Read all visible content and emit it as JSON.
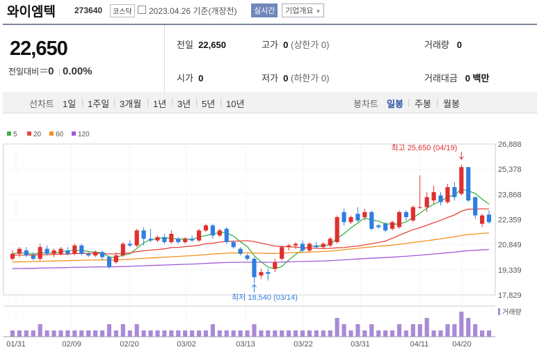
{
  "header": {
    "name": "와이엠텍",
    "code": "273640",
    "market": "코스닥",
    "date_text": "2023.04.26 기준(개장전)",
    "realtime": "실시간",
    "company_info": "기업개요"
  },
  "price_box": {
    "price": "22,650",
    "change_label": "전일대비",
    "change_value": "0",
    "change_pct": "0.00%"
  },
  "stats": {
    "prev_label": "전일",
    "prev_value": "22,650",
    "high_label": "고가",
    "high_value": "0",
    "high_limit": "(상한가 0)",
    "volume_label": "거래량",
    "volume_value": "0",
    "open_label": "시가",
    "open_value": "0",
    "low_label": "저가",
    "low_value": "0",
    "low_limit": "(하한가 0)",
    "amount_label": "거래대금",
    "amount_value": "0 백만"
  },
  "line_chart_tabs": {
    "label": "선차트",
    "items": [
      "1일",
      "1주일",
      "3개월",
      "1년",
      "3년",
      "5년",
      "10년"
    ]
  },
  "candle_tabs": {
    "label": "봉차트",
    "items": [
      "일봉",
      "주봉",
      "월봉"
    ],
    "selected": "일봉"
  },
  "colors": {
    "up": "#e02f2f",
    "down": "#2f7ee0",
    "ma5": "#3cb043",
    "ma20": "#e8453c",
    "ma60": "#f4901d",
    "ma120": "#a05ad8"
  },
  "chart_data": {
    "type": "candlestick",
    "legend": [
      {
        "name": "5",
        "color": "#3cb043"
      },
      {
        "name": "20",
        "color": "#e8453c"
      },
      {
        "name": "60",
        "color": "#f4901d"
      },
      {
        "name": "120",
        "color": "#a05ad8"
      }
    ],
    "y_ticks": [
      "26,888",
      "25,378",
      "23,868",
      "22,359",
      "20,849",
      "19,339",
      "17,829"
    ],
    "ylim": [
      17829,
      26888
    ],
    "x_ticks": [
      "01/31",
      "02/09",
      "02/20",
      "03/02",
      "03/13",
      "03/22",
      "03/31",
      "04/11",
      "04/20"
    ],
    "max_label": "최고 25,650 (04/19)",
    "min_label": "최저 18,540 (03/14)",
    "volume_label": "거래량",
    "candles": [
      {
        "o": 20000,
        "c": 20300,
        "h": 20500,
        "l": 19900,
        "v": 1
      },
      {
        "o": 20300,
        "c": 20600,
        "h": 20700,
        "l": 20100,
        "v": 1
      },
      {
        "o": 20500,
        "c": 20200,
        "h": 20700,
        "l": 20100,
        "v": 1
      },
      {
        "o": 20200,
        "c": 20000,
        "h": 20400,
        "l": 19900,
        "v": 1
      },
      {
        "o": 20000,
        "c": 20700,
        "h": 20900,
        "l": 19900,
        "v": 2
      },
      {
        "o": 20600,
        "c": 20300,
        "h": 20800,
        "l": 20200,
        "v": 1
      },
      {
        "o": 20300,
        "c": 20500,
        "h": 20600,
        "l": 20100,
        "v": 1
      },
      {
        "o": 20300,
        "c": 20600,
        "h": 20700,
        "l": 20200,
        "v": 1
      },
      {
        "o": 20500,
        "c": 20300,
        "h": 20700,
        "l": 20200,
        "v": 1
      },
      {
        "o": 20300,
        "c": 20800,
        "h": 20900,
        "l": 20200,
        "v": 1
      },
      {
        "o": 20800,
        "c": 20300,
        "h": 20900,
        "l": 20200,
        "v": 1
      },
      {
        "o": 20300,
        "c": 20200,
        "h": 20400,
        "l": 20100,
        "v": 1
      },
      {
        "o": 20200,
        "c": 20400,
        "h": 20500,
        "l": 20100,
        "v": 1
      },
      {
        "o": 20400,
        "c": 20100,
        "h": 20500,
        "l": 19900,
        "v": 1
      },
      {
        "o": 20100,
        "c": 19500,
        "h": 20200,
        "l": 19400,
        "v": 2
      },
      {
        "o": 19800,
        "c": 20200,
        "h": 20400,
        "l": 19700,
        "v": 1
      },
      {
        "o": 20200,
        "c": 20900,
        "h": 21000,
        "l": 20100,
        "v": 2
      },
      {
        "o": 20900,
        "c": 20800,
        "h": 21100,
        "l": 20700,
        "v": 1
      },
      {
        "o": 20800,
        "c": 21700,
        "h": 21800,
        "l": 20700,
        "v": 2
      },
      {
        "o": 21700,
        "c": 21200,
        "h": 21900,
        "l": 20800,
        "v": 1
      },
      {
        "o": 21200,
        "c": 21100,
        "h": 21800,
        "l": 21000,
        "v": 1
      },
      {
        "o": 21100,
        "c": 21300,
        "h": 21400,
        "l": 21000,
        "v": 1
      },
      {
        "o": 21300,
        "c": 21000,
        "h": 21500,
        "l": 20900,
        "v": 1
      },
      {
        "o": 21000,
        "c": 21500,
        "h": 21700,
        "l": 20900,
        "v": 1
      },
      {
        "o": 21200,
        "c": 21000,
        "h": 21300,
        "l": 20900,
        "v": 1
      },
      {
        "o": 21000,
        "c": 21200,
        "h": 21300,
        "l": 20900,
        "v": 1
      },
      {
        "o": 21200,
        "c": 21100,
        "h": 21400,
        "l": 21000,
        "v": 1
      },
      {
        "o": 21100,
        "c": 21700,
        "h": 21800,
        "l": 21000,
        "v": 1
      },
      {
        "o": 21700,
        "c": 22000,
        "h": 22100,
        "l": 21600,
        "v": 1
      },
      {
        "o": 22000,
        "c": 21400,
        "h": 22100,
        "l": 21200,
        "v": 2
      },
      {
        "o": 21400,
        "c": 21700,
        "h": 21800,
        "l": 21300,
        "v": 1
      },
      {
        "o": 21800,
        "c": 21000,
        "h": 21900,
        "l": 20900,
        "v": 1
      },
      {
        "o": 21000,
        "c": 20700,
        "h": 21100,
        "l": 20600,
        "v": 1
      },
      {
        "o": 20600,
        "c": 20300,
        "h": 20700,
        "l": 20200,
        "v": 1
      },
      {
        "o": 20200,
        "c": 20000,
        "h": 20300,
        "l": 19900,
        "v": 1
      },
      {
        "o": 20000,
        "c": 18900,
        "h": 20100,
        "l": 18540,
        "v": 2
      },
      {
        "o": 19000,
        "c": 19200,
        "h": 19400,
        "l": 18800,
        "v": 1
      },
      {
        "o": 19200,
        "c": 19100,
        "h": 19400,
        "l": 18700,
        "v": 1
      },
      {
        "o": 19400,
        "c": 19800,
        "h": 20000,
        "l": 19200,
        "v": 1
      },
      {
        "o": 20000,
        "c": 20700,
        "h": 20800,
        "l": 19900,
        "v": 1
      },
      {
        "o": 20700,
        "c": 20800,
        "h": 20900,
        "l": 20500,
        "v": 1
      },
      {
        "o": 20800,
        "c": 20900,
        "h": 21000,
        "l": 20600,
        "v": 1
      },
      {
        "o": 20900,
        "c": 20500,
        "h": 21100,
        "l": 20400,
        "v": 1
      },
      {
        "o": 20500,
        "c": 20900,
        "h": 21000,
        "l": 20400,
        "v": 1
      },
      {
        "o": 20800,
        "c": 20700,
        "h": 21000,
        "l": 20600,
        "v": 1
      },
      {
        "o": 20700,
        "c": 20900,
        "h": 21000,
        "l": 20600,
        "v": 1
      },
      {
        "o": 20800,
        "c": 21200,
        "h": 21300,
        "l": 20700,
        "v": 1
      },
      {
        "o": 21000,
        "c": 22500,
        "h": 22600,
        "l": 20900,
        "v": 3
      },
      {
        "o": 22800,
        "c": 22200,
        "h": 23000,
        "l": 22000,
        "v": 2
      },
      {
        "o": 22200,
        "c": 22500,
        "h": 22600,
        "l": 22100,
        "v": 1
      },
      {
        "o": 22700,
        "c": 22300,
        "h": 23100,
        "l": 22200,
        "v": 2
      },
      {
        "o": 22500,
        "c": 22800,
        "h": 23000,
        "l": 22300,
        "v": 1
      },
      {
        "o": 22800,
        "c": 21800,
        "h": 22900,
        "l": 21700,
        "v": 2
      },
      {
        "o": 22000,
        "c": 21900,
        "h": 22100,
        "l": 21800,
        "v": 1
      },
      {
        "o": 22100,
        "c": 21700,
        "h": 22200,
        "l": 21600,
        "v": 1
      },
      {
        "o": 21800,
        "c": 22200,
        "h": 22300,
        "l": 21700,
        "v": 1
      },
      {
        "o": 21900,
        "c": 22800,
        "h": 22900,
        "l": 21800,
        "v": 2
      },
      {
        "o": 22800,
        "c": 22500,
        "h": 22900,
        "l": 22300,
        "v": 1
      },
      {
        "o": 22300,
        "c": 23100,
        "h": 23200,
        "l": 22200,
        "v": 2
      },
      {
        "o": 23100,
        "c": 23100,
        "h": 25000,
        "l": 23000,
        "v": 2
      },
      {
        "o": 23100,
        "c": 23700,
        "h": 24000,
        "l": 22800,
        "v": 3
      },
      {
        "o": 23500,
        "c": 24000,
        "h": 24400,
        "l": 23300,
        "v": 1
      },
      {
        "o": 23800,
        "c": 23400,
        "h": 24000,
        "l": 23200,
        "v": 1
      },
      {
        "o": 23400,
        "c": 24300,
        "h": 24500,
        "l": 23300,
        "v": 2
      },
      {
        "o": 24300,
        "c": 23700,
        "h": 24600,
        "l": 23500,
        "v": 2
      },
      {
        "o": 23900,
        "c": 25500,
        "h": 25650,
        "l": 23800,
        "v": 4
      },
      {
        "o": 25500,
        "c": 23500,
        "h": 25500,
        "l": 23400,
        "v": 3
      },
      {
        "o": 23700,
        "c": 22600,
        "h": 23700,
        "l": 22400,
        "v": 2
      },
      {
        "o": 22100,
        "c": 22600,
        "h": 22700,
        "l": 21900,
        "v": 1
      },
      {
        "o": 22650,
        "c": 22200,
        "h": 22900,
        "l": 22100,
        "v": 1
      }
    ]
  }
}
